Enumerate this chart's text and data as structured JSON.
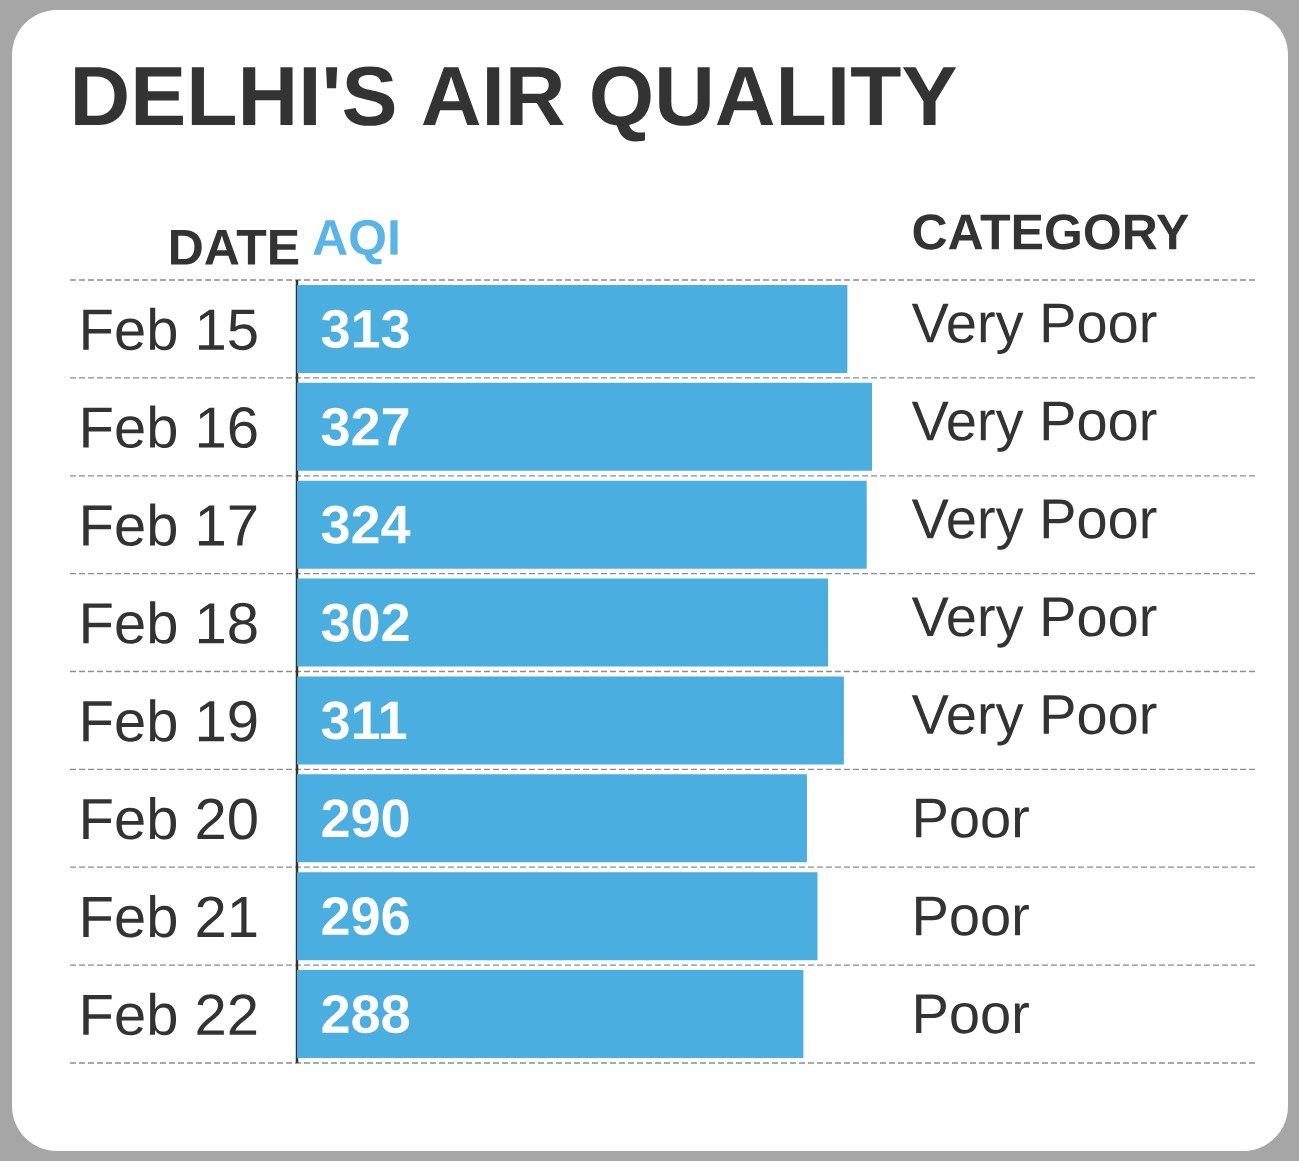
{
  "chart_data": {
    "type": "bar",
    "orientation": "horizontal",
    "title": "DELHI'S AIR QUALITY",
    "ylabel": "DATE",
    "xlabel": "AQI",
    "categories": [
      "Feb 15",
      "Feb 16",
      "Feb 17",
      "Feb 18",
      "Feb 19",
      "Feb 20",
      "Feb 21",
      "Feb 22"
    ],
    "values": [
      313,
      327,
      324,
      302,
      311,
      290,
      296,
      288
    ],
    "color": "#4aaee0",
    "data_labels": true,
    "tick_labels": "y",
    "annotations": [
      "CATEGORY",
      "Very Poor",
      "Very Poor",
      "Very Poor",
      "Very Poor",
      "Very Poor",
      "Poor",
      "Poor",
      "Poor"
    ]
  }
}
